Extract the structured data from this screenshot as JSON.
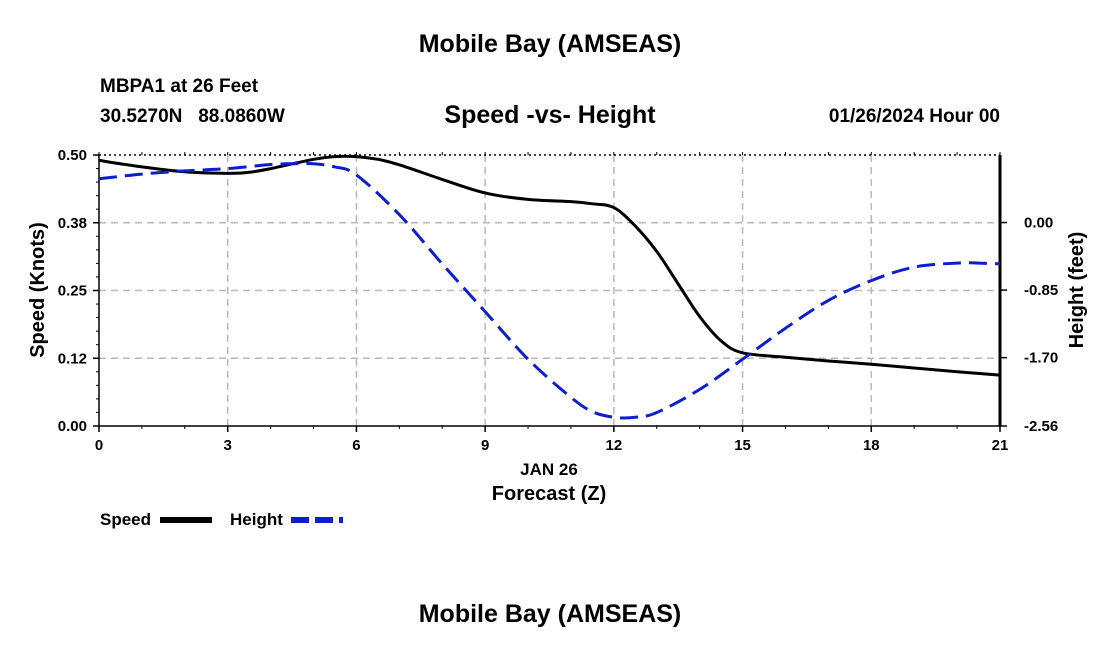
{
  "header": {
    "main_title": "Mobile Bay (AMSEAS)",
    "station": "MBPA1 at 26 Feet",
    "coords": "30.5270N   88.0860W",
    "date_hour": "01/26/2024 Hour 00",
    "footer_title": "Mobile Bay (AMSEAS)"
  },
  "chart_data": {
    "type": "line",
    "title": "Speed -vs- Height",
    "xlabel": "Forecast (Z)",
    "date_label": "JAN 26",
    "ylabel_left": "Speed (Knots)",
    "ylabel_right": "Height (feet)",
    "xlim": [
      0,
      21
    ],
    "ylim_left": [
      0,
      0.5
    ],
    "ylim_right": [
      -2.56,
      0.85
    ],
    "x_ticks": [
      0,
      3,
      6,
      9,
      12,
      15,
      18,
      21
    ],
    "y_left_ticks": [
      "0.00",
      "0.12",
      "0.25",
      "0.38",
      "0.50"
    ],
    "y_left_tick_values": [
      0,
      0.125,
      0.25,
      0.375,
      0.5
    ],
    "y_right_ticks": [
      "-2.56",
      "-1.70",
      "-0.85",
      "0.00"
    ],
    "y_right_tick_values": [
      -2.56,
      -1.7,
      -0.85,
      0.0
    ],
    "grid": true,
    "series": [
      {
        "name": "Speed",
        "axis": "left",
        "color": "#000000",
        "dash": "solid",
        "x": [
          0,
          1,
          2,
          3,
          3.5,
          4,
          5,
          5.5,
          6,
          6.5,
          7,
          8,
          9,
          10,
          11,
          11.5,
          12,
          12.5,
          13,
          13.5,
          14,
          14.5,
          15,
          16,
          17,
          18,
          19,
          20,
          21
        ],
        "y": [
          0.49,
          0.478,
          0.469,
          0.466,
          0.468,
          0.475,
          0.492,
          0.497,
          0.497,
          0.492,
          0.482,
          0.455,
          0.43,
          0.418,
          0.414,
          0.41,
          0.403,
          0.369,
          0.322,
          0.262,
          0.202,
          0.157,
          0.135,
          0.127,
          0.12,
          0.114,
          0.107,
          0.1,
          0.094
        ]
      },
      {
        "name": "Height",
        "axis": "right",
        "color": "#0d1fcc",
        "dash": "dashed",
        "x": [
          0,
          1,
          2,
          3,
          4,
          4.5,
          5,
          5.5,
          6,
          7,
          8,
          9,
          10,
          11,
          11.5,
          12,
          12.5,
          13,
          14,
          15,
          16,
          17,
          18,
          19,
          20,
          20.5,
          21
        ],
        "y": [
          0.55,
          0.61,
          0.65,
          0.68,
          0.73,
          0.74,
          0.74,
          0.7,
          0.6,
          0.1,
          -0.52,
          -1.12,
          -1.72,
          -2.2,
          -2.38,
          -2.45,
          -2.45,
          -2.39,
          -2.1,
          -1.72,
          -1.33,
          -0.98,
          -0.73,
          -0.56,
          -0.51,
          -0.51,
          -0.52
        ]
      }
    ]
  }
}
